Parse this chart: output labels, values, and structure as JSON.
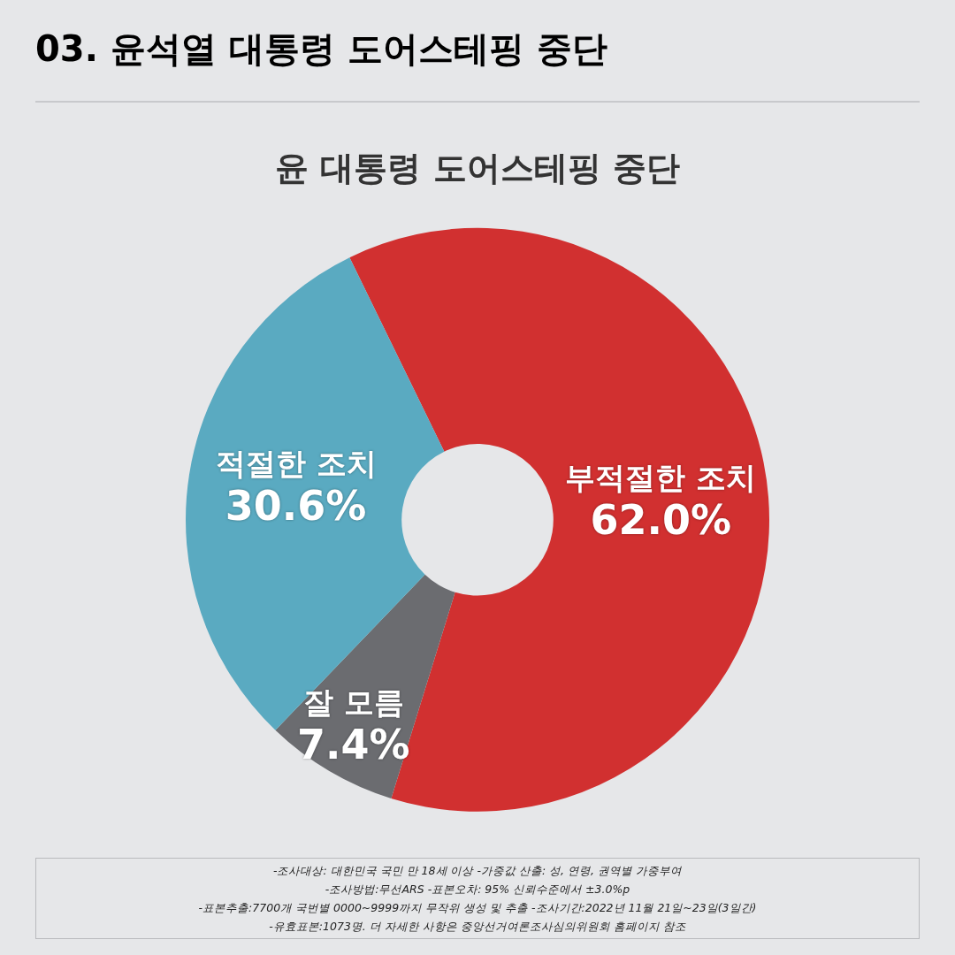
{
  "chart_data": {
    "type": "donut",
    "title": "03. 윤석열 대통령 도어스테핑 중단",
    "subtitle": "윤 대통령 도어스테핑 중단",
    "categories": [
      "부적절한 조치",
      "잘 모름",
      "적절한 조치"
    ],
    "values": [
      62.0,
      7.4,
      30.6
    ],
    "colors": [
      "#d13030",
      "#6b6c70",
      "#5aaac1"
    ],
    "value_labels": [
      "62.0%",
      "7.4%",
      "30.6%"
    ],
    "legend": false,
    "annotations": [
      "-조사대상: 대한민국 국민 만 18세 이상  -가중값 산출: 성, 연령, 권역별 가중부여",
      "-조사방법:무선ARS -표본오차: 95% 신뢰수준에서 ±3.0%p",
      "-표본추출:7700개 국번별 0000~9999까지 무작위 생성 및 추출 -조사기간:2022년 11월 21일~23일(3일간)",
      "-유효표본:1073명. 더 자세한 사항은 중앙선거여론조사심의위원회 홈페이지 참조"
    ]
  }
}
